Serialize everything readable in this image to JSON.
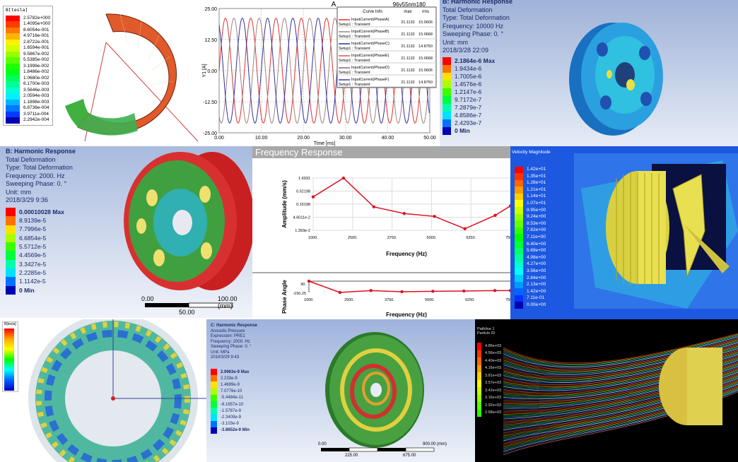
{
  "panels": {
    "magnetic": {
      "legend_title": "B[tesla]",
      "legend": [
        "2.5782e+000",
        "1.4095e+000",
        "8.6054e-001",
        "4.9716e-001",
        "2.8722e-001",
        "1.6594e-001",
        "9.5867e-002",
        "5.5385e-002",
        "3.1998e-002",
        "1.8486e-002",
        "1.0680e-002",
        "6.1700e-003",
        "3.5646e-003",
        "2.0594e-003",
        "1.1898e-003",
        "6.8736e-004",
        "3.9711e-004",
        "2.2942e-004"
      ]
    },
    "harmonic_10000": {
      "lines": [
        "B: Harmonic Response",
        "Total Deformation",
        "Type: Total Deformation",
        "Frequency: 10000 Hz",
        "Sweeping Phase: 0. °",
        "Unit: mm",
        "2018/3/28 22:09"
      ],
      "legend": [
        "2.1864e-6 Max",
        "1.9434e-6",
        "1.7005e-6",
        "1.4576e-6",
        "1.2147e-6",
        "9.7172e-7",
        "7.2879e-7",
        "4.8586e-7",
        "2.4293e-7",
        "0 Min"
      ]
    },
    "harmonic_2000": {
      "lines": [
        "B: Harmonic Response",
        "Total Deformation",
        "Type: Total Deformation",
        "Frequency: 2000. Hz",
        "Sweeping Phase: 0. °",
        "Unit: mm",
        "2018/3/29 9:36"
      ],
      "legend": [
        "0.00010028 Max",
        "8.9139e-5",
        "7.7996e-5",
        "6.6854e-5",
        "5.5712e-5",
        "4.4569e-5",
        "3.3427e-5",
        "2.2285e-5",
        "1.1142e-5",
        "0 Min"
      ],
      "scale": {
        "left": "0.00",
        "right": "100.00 (mm)",
        "mid": "50.00"
      }
    },
    "velocity": {
      "legend_title": "Velocity Magnitude",
      "legend": [
        "1.42e+01",
        "1.35e+01",
        "1.28e+01",
        "1.21e+01",
        "1.14e+01",
        "1.07e+01",
        "9.95e+00",
        "9.24e+00",
        "8.53e+00",
        "7.82e+00",
        "7.11e+00",
        "6.40e+00",
        "5.69e+00",
        "4.98e+00",
        "4.27e+00",
        "3.56e+00",
        "2.84e+00",
        "2.13e+00",
        "1.42e+00",
        "7.11e-01",
        "0.00e+00"
      ]
    },
    "stator": {
      "legend_title": "B[tesla]"
    },
    "acoustic": {
      "lines": [
        "C: Harmonic Response",
        "Acoustic Pressure",
        "Expression: PRE1",
        "Frequency: 2000. Hz",
        "Sweeping Phase: 0. °",
        "Unit: MPa",
        "2018/3/29 9:43"
      ],
      "legend": [
        "2.9963e-9 Max",
        "2.233e-9",
        "1.4699e-9",
        "7.0776e-10",
        "-5.4484e-11",
        "-8.1657e-10",
        "-1.5787e-9",
        "-2.3409e-9",
        "-3.103e-9",
        "-3.8652e-9 Min"
      ],
      "scale": {
        "left": "0.00",
        "right": "900.00 (mm)",
        "a": "225.00",
        "b": "675.00"
      }
    },
    "pathlines": {
      "legend_title": "Pathline 1",
      "legend_subtitle": "Particle ID",
      "legend": [
        "4.86e+03",
        "4.56e+03",
        "4.40e+03",
        "4.16e+03",
        "3.81e+03",
        "3.57e+03",
        "3.42e+03",
        "3.16e+03",
        "2.92e+03",
        "2.68e+03"
      ]
    }
  },
  "chart_data": [
    {
      "type": "line",
      "title": "A",
      "subtitle": "96v55nm180",
      "xlabel": "Time [ms]",
      "ylabel": "Y1 [A]",
      "xlim": [
        0,
        50
      ],
      "ylim": [
        -25,
        25
      ],
      "xticks": [
        "0.00",
        "10.00",
        "20.00",
        "30.00",
        "40.00",
        "50.00"
      ],
      "yticks": [
        "25.00",
        "12.50",
        "0.00",
        "-12.50",
        "-25.00"
      ],
      "amplitude": 21.1132,
      "period_ms": 6,
      "grid": true,
      "legend_placement": "top-right",
      "legend_headers": [
        "Curve Info",
        "max",
        "rms"
      ],
      "series": [
        {
          "name": "InputCurrent(PhaseA)",
          "sub": "Setup1 : Transient",
          "max": "21.1132",
          "rms": "15.0606",
          "color": "#e03030",
          "phase_deg": 0
        },
        {
          "name": "InputCurrent(PhaseB)",
          "sub": "Setup1 : Transient",
          "max": "21.1132",
          "rms": "15.0668",
          "color": "#a08080",
          "phase_deg": 120
        },
        {
          "name": "InputCurrent(PhaseC)",
          "sub": "Setup1 : Transient",
          "max": "21.1132",
          "rms": "14.8750",
          "color": "#3030a0",
          "phase_deg": 240
        },
        {
          "name": "InputCurrent(PhaseE)",
          "sub": "Setup1 : Transient",
          "max": "21.1132",
          "rms": "15.0668",
          "color": "#e05050",
          "phase_deg": 0
        },
        {
          "name": "InputCurrent(PhaseD)",
          "sub": "Setup1 : Transient",
          "max": "21.1132",
          "rms": "15.0606",
          "color": "#906070",
          "phase_deg": 120
        },
        {
          "name": "InputCurrent(PhaseF)",
          "sub": "Setup1 : Transient",
          "max": "21.1132",
          "rms": "14.8750",
          "color": "#3838b0",
          "phase_deg": 240
        }
      ]
    },
    {
      "type": "line",
      "title": "Frequency Response",
      "xlabel": "Frequency (Hz)",
      "ylabel": "Amplitude (mm/s)",
      "yscale": "log",
      "xlim": [
        1000,
        7500
      ],
      "xticks": [
        "1000.",
        "2500.",
        "3750.",
        "5000.",
        "6250.",
        "7500."
      ],
      "yticks": [
        "1.6931",
        "0.52198",
        "0.15198",
        "4.6011e-2",
        "1.393e-2"
      ],
      "x": [
        1000,
        2000,
        3000,
        4000,
        5000,
        6000,
        7000,
        7500
      ],
      "y": [
        0.3,
        1.69,
        0.12,
        0.065,
        0.05,
        0.016,
        0.055,
        0.13
      ],
      "color": "#dd1122"
    },
    {
      "type": "line",
      "xlabel": "Frequency (Hz)",
      "ylabel": "Phase Angle",
      "xlim": [
        1000,
        7500
      ],
      "ylim": [
        -150.25,
        90
      ],
      "xticks": [
        "1000.",
        "2500.",
        "3750.",
        "5000.",
        "6250.",
        "7500."
      ],
      "yticks": [
        "90.",
        "-150.25"
      ],
      "x": [
        1000,
        2000,
        3000,
        4000,
        5000,
        6000,
        7000,
        7500
      ],
      "y": [
        90,
        -150,
        -110,
        -135,
        -125,
        -120,
        -110,
        -110
      ],
      "color": "#dd1122"
    }
  ]
}
